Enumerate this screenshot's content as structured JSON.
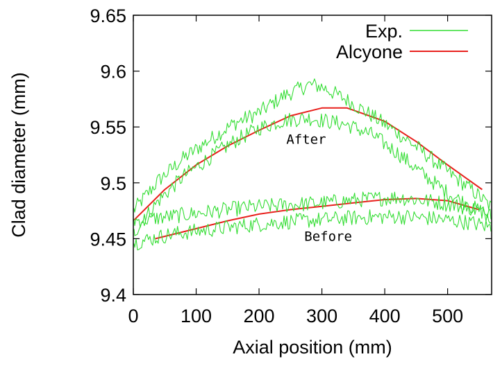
{
  "chart_data": {
    "type": "line",
    "title": "",
    "xlabel": "Axial position (mm)",
    "ylabel": "Clad diameter (mm)",
    "xlim": [
      0,
      570
    ],
    "ylim": [
      9.4,
      9.65
    ],
    "x_ticks": [
      0,
      100,
      200,
      300,
      400,
      500
    ],
    "x_tick_labels": [
      "0",
      "100",
      "200",
      "300",
      "400",
      "500"
    ],
    "y_ticks": [
      9.4,
      9.45,
      9.5,
      9.55,
      9.6,
      9.65
    ],
    "y_tick_labels": [
      "9.4",
      "9.45",
      "9.5",
      "9.55",
      "9.6",
      "9.65"
    ],
    "grid": false,
    "legend": "top-right",
    "annotations": [
      {
        "text": "After",
        "x": 275,
        "y": 9.535
      },
      {
        "text": "Before",
        "x": 310,
        "y": 9.448
      }
    ],
    "series": [
      {
        "name": "Alcyone",
        "color": "#e8201c",
        "group": "after",
        "x": [
          0,
          50,
          100,
          150,
          200,
          250,
          300,
          340,
          400,
          450,
          500,
          555
        ],
        "y": [
          9.466,
          9.494,
          9.516,
          9.533,
          9.547,
          9.56,
          9.567,
          9.567,
          9.555,
          9.537,
          9.516,
          9.494
        ]
      },
      {
        "name": "Alcyone",
        "color": "#e8201c",
        "group": "before",
        "x": [
          35,
          100,
          150,
          200,
          250,
          300,
          350,
          400,
          450,
          500,
          550
        ],
        "y": [
          9.45,
          9.459,
          9.466,
          9.472,
          9.476,
          9.479,
          9.482,
          9.485,
          9.486,
          9.484,
          9.476
        ]
      },
      {
        "name": "Exp.",
        "color": "#33dd33",
        "group": "after-upper",
        "x": [
          0,
          40,
          80,
          120,
          160,
          200,
          240,
          280,
          300,
          340,
          380,
          420,
          460,
          500,
          540,
          570
        ],
        "y": [
          9.475,
          9.502,
          9.522,
          9.538,
          9.553,
          9.563,
          9.578,
          9.588,
          9.586,
          9.574,
          9.56,
          9.545,
          9.528,
          9.51,
          9.493,
          9.478
        ]
      },
      {
        "name": "Exp.",
        "color": "#33dd33",
        "group": "after-lower",
        "x": [
          0,
          40,
          80,
          120,
          160,
          200,
          240,
          280,
          300,
          340,
          380,
          420,
          460,
          500,
          540,
          570
        ],
        "y": [
          9.455,
          9.484,
          9.506,
          9.522,
          9.537,
          9.549,
          9.556,
          9.558,
          9.556,
          9.552,
          9.543,
          9.527,
          9.508,
          9.491,
          9.478,
          9.47
        ]
      },
      {
        "name": "Exp.",
        "color": "#33dd33",
        "group": "before-upper",
        "x": [
          0,
          60,
          120,
          180,
          240,
          300,
          360,
          420,
          480,
          540,
          570
        ],
        "y": [
          9.466,
          9.47,
          9.474,
          9.478,
          9.48,
          9.482,
          9.485,
          9.487,
          9.483,
          9.477,
          9.47
        ]
      },
      {
        "name": "Exp.",
        "color": "#33dd33",
        "group": "before-lower",
        "x": [
          0,
          60,
          120,
          180,
          240,
          300,
          360,
          420,
          480,
          540,
          570
        ],
        "y": [
          9.446,
          9.454,
          9.458,
          9.462,
          9.465,
          9.467,
          9.469,
          9.47,
          9.468,
          9.464,
          9.46
        ]
      }
    ]
  },
  "legend": {
    "entries": [
      {
        "label": "Exp.",
        "color": "#33dd33"
      },
      {
        "label": "Alcyone",
        "color": "#e8201c"
      }
    ]
  }
}
